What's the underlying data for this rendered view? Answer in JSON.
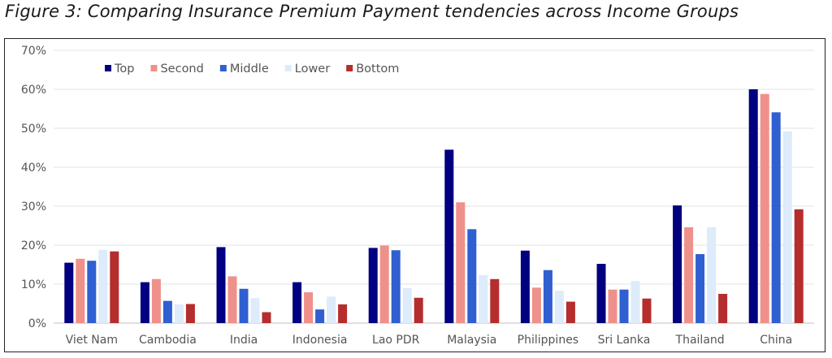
{
  "figure": {
    "caption": "Figure 3: Comparing Insurance Premium Payment tendencies across Income Groups"
  },
  "chart_data": {
    "type": "bar",
    "title": "",
    "xlabel": "",
    "ylabel": "",
    "categories": [
      "Viet Nam",
      "Cambodia",
      "India",
      "Indonesia",
      "Lao PDR",
      "Malaysia",
      "Philippines",
      "Sri Lanka",
      "Thailand",
      "China"
    ],
    "ylim": [
      0,
      70
    ],
    "yticks": [
      0,
      10,
      20,
      30,
      40,
      50,
      60,
      70
    ],
    "ytick_labels": [
      "0%",
      "10%",
      "20%",
      "30%",
      "40%",
      "50%",
      "60%",
      "70%"
    ],
    "grid": true,
    "legend_position": "top-left",
    "series": [
      {
        "name": "Top",
        "color": "#000080",
        "values": [
          15.5,
          10.5,
          19.5,
          10.5,
          19.3,
          44.5,
          18.6,
          15.2,
          30.2,
          60.0
        ]
      },
      {
        "name": "Second",
        "color": "#F0908A",
        "values": [
          16.5,
          11.3,
          12.0,
          7.9,
          19.9,
          31.0,
          9.1,
          8.6,
          24.6,
          58.8
        ]
      },
      {
        "name": "Middle",
        "color": "#2F5FD0",
        "values": [
          16.0,
          5.7,
          8.8,
          3.5,
          18.7,
          24.1,
          13.6,
          8.6,
          17.7,
          54.1
        ]
      },
      {
        "name": "Lower",
        "color": "#DDEBFA",
        "values": [
          18.8,
          4.8,
          6.4,
          6.8,
          9.0,
          12.3,
          8.3,
          10.8,
          24.6,
          49.2
        ]
      },
      {
        "name": "Bottom",
        "color": "#B52D2D",
        "values": [
          18.4,
          4.9,
          2.8,
          4.8,
          6.5,
          11.3,
          5.5,
          6.3,
          7.5,
          29.2
        ]
      }
    ]
  }
}
